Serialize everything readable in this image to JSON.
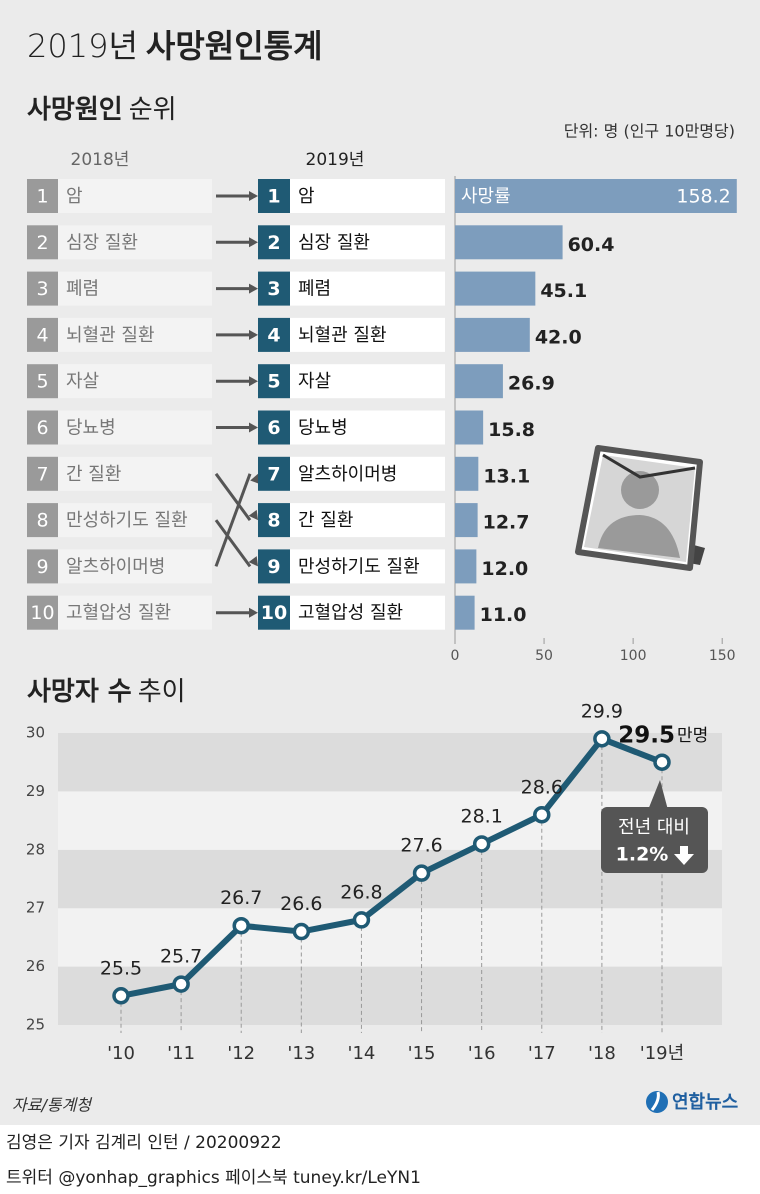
{
  "header": {
    "year": "2019년",
    "title": "사망원인통계"
  },
  "chart_data": [
    {
      "type": "bar",
      "orientation": "horizontal",
      "title_bold": "사망원인",
      "title_light": "순위",
      "unit_note": "단위: 명 (인구 10만명당)",
      "previous_label": "2018년",
      "current_label": "2019년",
      "ranks": [
        1,
        2,
        3,
        4,
        5,
        6,
        7,
        8,
        9,
        10
      ],
      "previous_categories": [
        "암",
        "심장 질환",
        "폐렴",
        "뇌혈관 질환",
        "자살",
        "당뇨병",
        "간 질환",
        "만성하기도 질환",
        "알츠하이머병",
        "고혈압성 질환"
      ],
      "categories": [
        "암",
        "심장 질환",
        "폐렴",
        "뇌혈관 질환",
        "자살",
        "당뇨병",
        "알츠하이머병",
        "간 질환",
        "만성하기도 질환",
        "고혈압성 질환"
      ],
      "values": [
        158.2,
        60.4,
        45.1,
        42,
        26.9,
        15.8,
        13.1,
        12.7,
        12,
        11
      ],
      "value_labels": [
        "158.2",
        "60.4",
        "45.1",
        "42.0",
        "26.9",
        "15.8",
        "13.1",
        "12.7",
        "12.0",
        "11.0"
      ],
      "bar_label": "사망률",
      "color": "#7d9dbd",
      "xlim": [
        0,
        160
      ],
      "xticks": [
        0,
        50,
        100,
        150
      ]
    },
    {
      "type": "line",
      "title_bold": "사망자 수",
      "title_light": "추이",
      "categories": [
        "'10",
        "'11",
        "'12",
        "'13",
        "'14",
        "'15",
        "'16",
        "'17",
        "'18",
        "'19년"
      ],
      "values": [
        25.5,
        25.7,
        26.7,
        26.6,
        26.8,
        27.6,
        28.1,
        28.6,
        29.9,
        29.5
      ],
      "color": "#1f5a74",
      "ylim": [
        25,
        30
      ],
      "yticks": [
        25,
        26,
        27,
        28,
        29,
        30
      ],
      "grid": "bands",
      "unit": "만명",
      "annotation": {
        "text": "전년 대비",
        "change": "1.2%"
      }
    }
  ],
  "footer": {
    "source": "자료/통계청",
    "logo": "연합뉴스",
    "credits": "김영은 기자  김계리 인턴 / 20200922",
    "social": "트위터 @yonhap_graphics  페이스북 tuney.kr/LeYN1"
  }
}
